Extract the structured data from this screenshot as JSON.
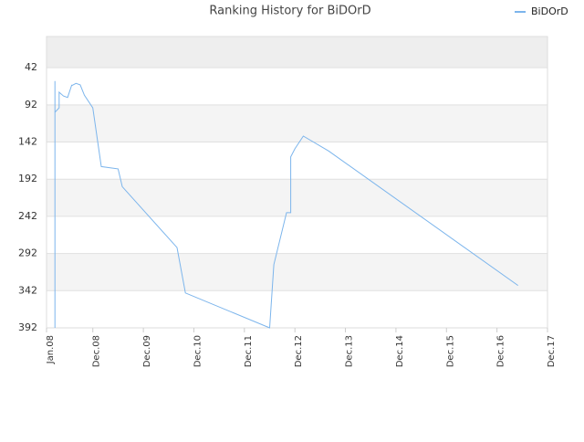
{
  "chart_data": {
    "type": "line",
    "title": "Ranking History for BiDOrD",
    "x": [
      "2008-03",
      "2008-03",
      "2008-03",
      "2008-04",
      "2008-04",
      "2008-05",
      "2008-06",
      "2008-07",
      "2008-07",
      "2008-08",
      "2008-09",
      "2008-10",
      "2008-12",
      "2009-02",
      "2009-06",
      "2009-07",
      "2010-08",
      "2010-10",
      "2012-06",
      "2012-07",
      "2012-10",
      "2012-11",
      "2012-11",
      "2012-11",
      "2012-12",
      "2013-02",
      "2013-08",
      "2017-05"
    ],
    "series": [
      {
        "name": "BiDOrD",
        "color": "#7cb5ec",
        "values": [
          392,
          60,
          102,
          96,
          75,
          80,
          82,
          65,
          66,
          63,
          65,
          79,
          96,
          175,
          178,
          202,
          284,
          345,
          392,
          307,
          237,
          237,
          184,
          162,
          151,
          134,
          154,
          335
        ]
      }
    ],
    "xlim": [
      "2008-01",
      "2017-12"
    ],
    "xticks": [
      {
        "value": "2008-01",
        "label": "Jan.08"
      },
      {
        "value": "2008-12",
        "label": "Dec.08"
      },
      {
        "value": "2009-12",
        "label": "Dec.09"
      },
      {
        "value": "2010-12",
        "label": "Dec.10"
      },
      {
        "value": "2011-12",
        "label": "Dec.11"
      },
      {
        "value": "2012-12",
        "label": "Dec.12"
      },
      {
        "value": "2013-12",
        "label": "Dec.13"
      },
      {
        "value": "2014-12",
        "label": "Dec.14"
      },
      {
        "value": "2015-12",
        "label": "Dec.15"
      },
      {
        "value": "2016-12",
        "label": "Dec.16"
      },
      {
        "value": "2017-12",
        "label": "Dec.17"
      }
    ],
    "ylim": [
      392,
      0
    ],
    "yticks": [
      42,
      92,
      142,
      192,
      242,
      292,
      342,
      392
    ],
    "legend": "top-right"
  }
}
